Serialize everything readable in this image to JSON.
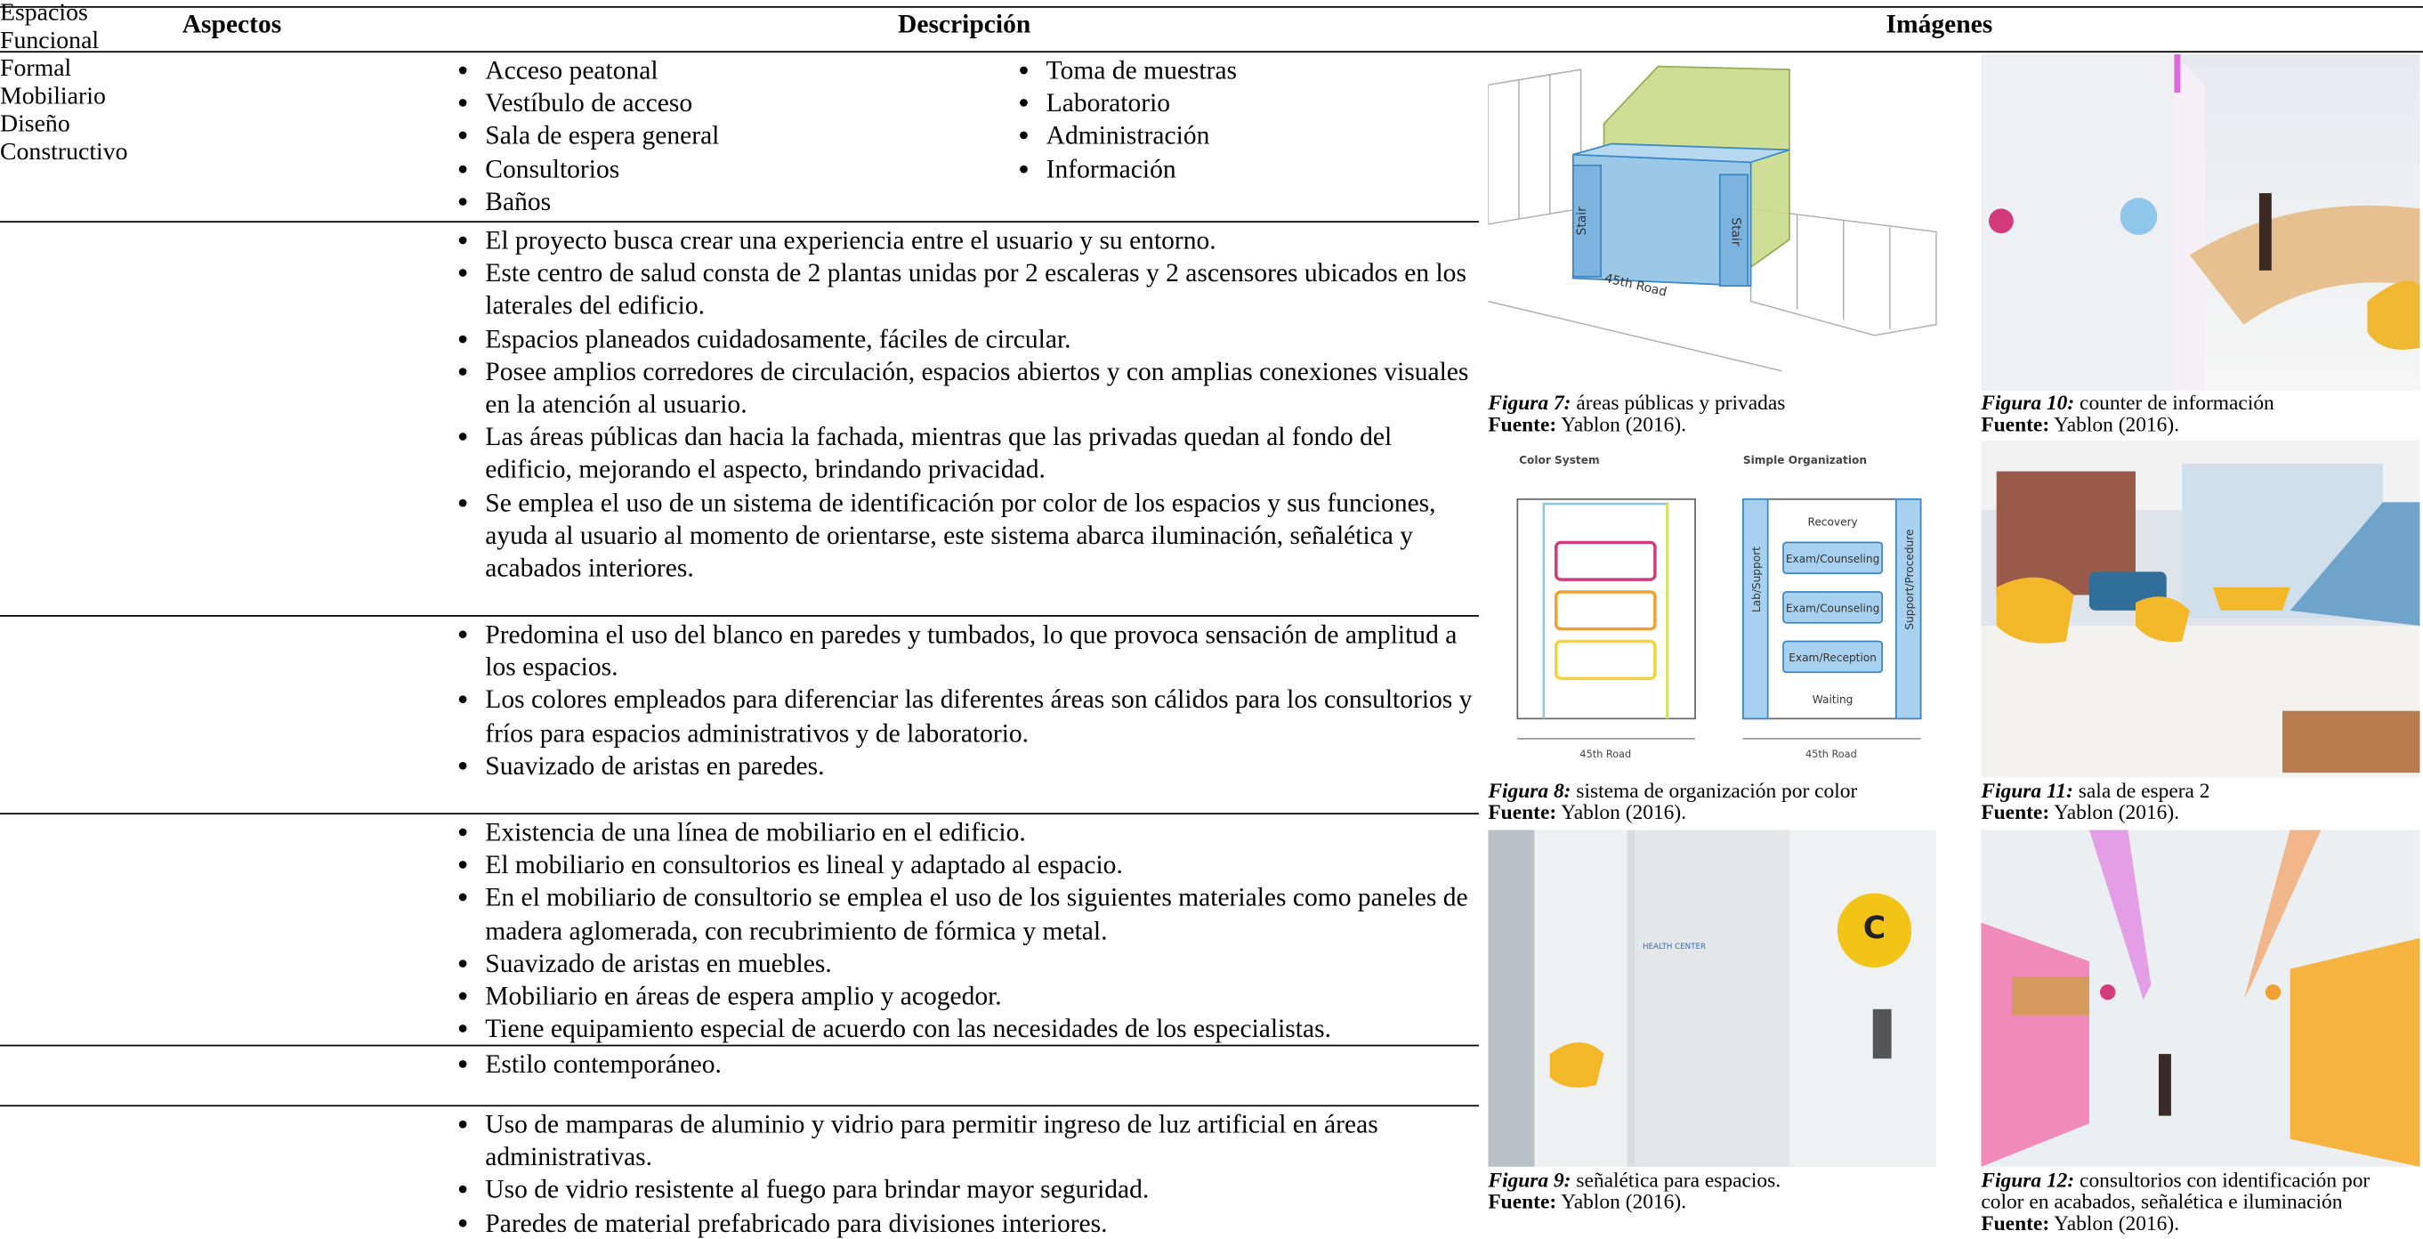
{
  "table": {
    "headers": [
      "Aspectos",
      "Descripción",
      "Imágenes"
    ],
    "rows": [
      {
        "aspect": "Espacios",
        "columns": [
          [
            "Acceso peatonal",
            "Vestíbulo de acceso",
            "Sala de espera general",
            "Consultorios",
            "Baños"
          ],
          [
            "Toma de muestras",
            "Laboratorio",
            "Administración",
            "Información"
          ]
        ]
      },
      {
        "aspect": "Funcional",
        "columns": [
          [
            "El proyecto busca crear una experiencia entre el usuario y su entorno.",
            "Este centro de salud consta de 2 plantas unidas por 2 escaleras y 2 ascensores ubicados en los laterales del edificio.",
            "Espacios planeados cuidadosamente, fáciles de circular.",
            "Posee amplios corredores de circulación, espacios abiertos y con amplias conexiones visuales en la atención al usuario.",
            "Las áreas públicas dan hacia la fachada, mientras que las privadas quedan al fondo del edificio, mejorando el aspecto, brindando privacidad.",
            "Se emplea el uso de un sistema de identificación por color de los espacios y sus funciones, ayuda al usuario al momento de orientarse, este sistema abarca iluminación, señalética y acabados interiores."
          ]
        ]
      },
      {
        "aspect": "Formal",
        "columns": [
          [
            "Predomina el uso del blanco en paredes y tumbados, lo que provoca sensación de amplitud a los espacios.",
            "Los colores empleados para diferenciar las diferentes áreas son cálidos para los consultorios y fríos para espacios administrativos y de laboratorio.",
            "Suavizado de aristas en paredes."
          ]
        ]
      },
      {
        "aspect": "Mobiliario",
        "columns": [
          [
            "Existencia de una línea de mobiliario en el edificio.",
            "El mobiliario en consultorios es lineal y adaptado al espacio.",
            "En el mobiliario de consultorio se emplea el uso de los siguientes materiales como paneles de madera aglomerada, con recubrimiento de fórmica y metal.",
            "Suavizado de aristas en muebles.",
            "Mobiliario en áreas de espera amplio y acogedor.",
            "Tiene equipamiento especial de acuerdo con las necesidades de los especialistas."
          ]
        ]
      },
      {
        "aspect": "Diseño",
        "columns": [
          [
            "Estilo contemporáneo."
          ]
        ]
      },
      {
        "aspect": "Constructivo",
        "columns": [
          [
            "Uso de mamparas de aluminio y vidrio para permitir ingreso de luz artificial en áreas administrativas.",
            "Uso de vidrio resistente al fuego para brindar mayor seguridad.",
            "Paredes de material prefabricado para divisiones interiores."
          ]
        ]
      }
    ]
  },
  "figures": [
    {
      "number": "Figura 7:",
      "caption": "áreas públicas y privadas",
      "source_label": "Fuente:",
      "source": "Yablon (2016)."
    },
    {
      "number": "Figura 10:",
      "caption": "counter de información",
      "source_label": "Fuente:",
      "source": "Yablon (2016)."
    },
    {
      "number": "Figura 8:",
      "caption": "sistema de organización por color",
      "source_label": "Fuente:",
      "source": "Yablon (2016)."
    },
    {
      "number": "Figura 11:",
      "caption": "sala de espera 2",
      "source_label": "Fuente:",
      "source": "Yablon (2016)."
    },
    {
      "number": "Figura 9:",
      "caption": "señalética para espacios.",
      "source_label": "Fuente:",
      "source": "Yablon (2016)."
    },
    {
      "number": "Figura 12:",
      "caption": "consultorios con identificación por color en acabados, señalética e iluminación",
      "source_label": "Fuente:",
      "source": "Yablon (2016)."
    }
  ],
  "diagram7": {
    "stair_labels": [
      "Stair",
      "Stair"
    ],
    "road": "45th Road"
  },
  "diagram8": {
    "left_title": "Color System",
    "right_title": "Simple Organization",
    "rooms": [
      "Recovery",
      "Exam/Counseling",
      "Exam/Counseling",
      "Exam/Reception",
      "Waiting"
    ],
    "side_labels": [
      "Lab/Support",
      "Support/Procedure"
    ],
    "roads": [
      "45th Road",
      "45th Road"
    ]
  },
  "photo9": {
    "sign": "HEALTH CENTER",
    "letter": "C"
  }
}
